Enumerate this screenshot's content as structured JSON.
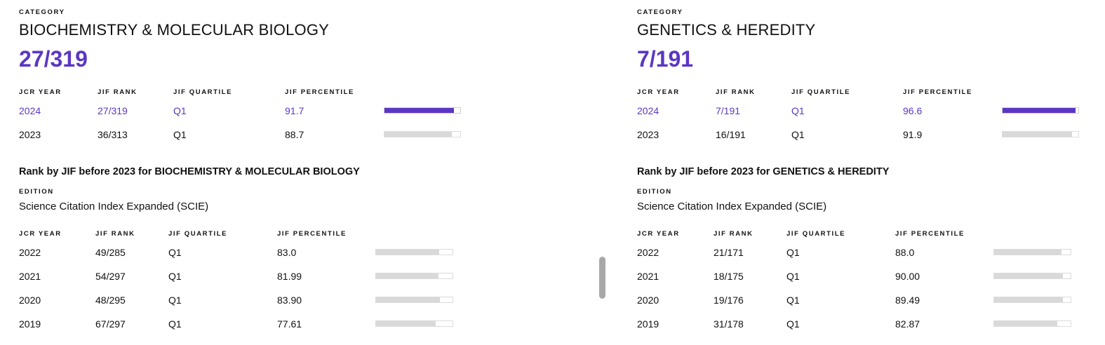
{
  "panels": [
    {
      "category_caption": "CATEGORY",
      "category_name": "BIOCHEMISTRY & MOLECULAR BIOLOGY",
      "rank": "27/319",
      "headers": [
        "JCR YEAR",
        "JIF RANK",
        "JIF QUARTILE",
        "JIF PERCENTILE"
      ],
      "rows": [
        {
          "year": "2024",
          "rank": "27/319",
          "quartile": "Q1",
          "percentile": "91.7",
          "pct": 91.7
        },
        {
          "year": "2023",
          "rank": "36/313",
          "quartile": "Q1",
          "percentile": "88.7",
          "pct": 88.7
        }
      ],
      "before_title": "Rank by JIF before 2023 for BIOCHEMISTRY & MOLECULAR BIOLOGY",
      "edition_caption": "EDITION",
      "edition": "Science Citation Index Expanded (SCIE)",
      "before_headers": [
        "JCR YEAR",
        "JIF RANK",
        "JIF QUARTILE",
        "JIF PERCENTILE"
      ],
      "before_rows": [
        {
          "year": "2022",
          "rank": "49/285",
          "quartile": "Q1",
          "percentile": "83.0",
          "pct": 83.0
        },
        {
          "year": "2021",
          "rank": "54/297",
          "quartile": "Q1",
          "percentile": "81.99",
          "pct": 81.99
        },
        {
          "year": "2020",
          "rank": "48/295",
          "quartile": "Q1",
          "percentile": "83.90",
          "pct": 83.9
        },
        {
          "year": "2019",
          "rank": "67/297",
          "quartile": "Q1",
          "percentile": "77.61",
          "pct": 77.61
        }
      ]
    },
    {
      "category_caption": "CATEGORY",
      "category_name": "GENETICS & HEREDITY",
      "rank": "7/191",
      "headers": [
        "JCR YEAR",
        "JIF RANK",
        "JIF QUARTILE",
        "JIF PERCENTILE"
      ],
      "rows": [
        {
          "year": "2024",
          "rank": "7/191",
          "quartile": "Q1",
          "percentile": "96.6",
          "pct": 96.6
        },
        {
          "year": "2023",
          "rank": "16/191",
          "quartile": "Q1",
          "percentile": "91.9",
          "pct": 91.9
        }
      ],
      "before_title": "Rank by JIF before 2023 for GENETICS & HEREDITY",
      "edition_caption": "EDITION",
      "edition": "Science Citation Index Expanded (SCIE)",
      "before_headers": [
        "JCR YEAR",
        "JIF RANK",
        "JIF QUARTILE",
        "JIF PERCENTILE"
      ],
      "before_rows": [
        {
          "year": "2022",
          "rank": "21/171",
          "quartile": "Q1",
          "percentile": "88.0",
          "pct": 88.0
        },
        {
          "year": "2021",
          "rank": "18/175",
          "quartile": "Q1",
          "percentile": "90.00",
          "pct": 90.0
        },
        {
          "year": "2020",
          "rank": "19/176",
          "quartile": "Q1",
          "percentile": "89.49",
          "pct": 89.49
        },
        {
          "year": "2019",
          "rank": "31/178",
          "quartile": "Q1",
          "percentile": "82.87",
          "pct": 82.87
        }
      ]
    }
  ],
  "colors": {
    "accent": "#5b37c4",
    "bar_track": "#d9d9d9"
  }
}
